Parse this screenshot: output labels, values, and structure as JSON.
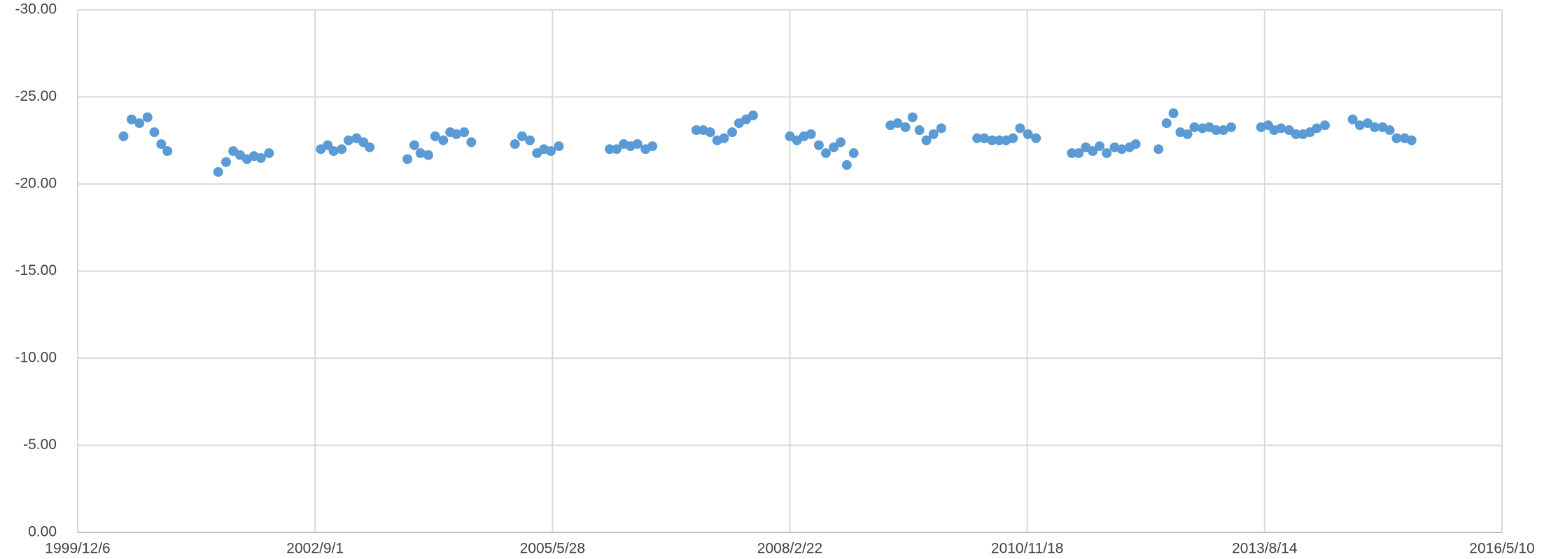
{
  "chart_data": {
    "type": "scatter",
    "color": "#5b9bd5",
    "grid": true,
    "xlim": [
      36500,
      42500
    ],
    "xticks": [
      {
        "value": 36500,
        "label": "1999/12/6"
      },
      {
        "value": 37500,
        "label": "2002/9/1"
      },
      {
        "value": 38500,
        "label": "2005/5/28"
      },
      {
        "value": 39500,
        "label": "2008/2/22"
      },
      {
        "value": 40500,
        "label": "2010/11/18"
      },
      {
        "value": 41500,
        "label": "2013/8/14"
      },
      {
        "value": 42500,
        "label": "2016/5/10"
      }
    ],
    "ylim": [
      0,
      -30
    ],
    "yticks": [
      {
        "value": -30,
        "label": "-30.00"
      },
      {
        "value": -25,
        "label": "-25.00"
      },
      {
        "value": -20,
        "label": "-20.00"
      },
      {
        "value": -15,
        "label": "-15.00"
      },
      {
        "value": -10,
        "label": "-10.00"
      },
      {
        "value": -5,
        "label": "-5.00"
      },
      {
        "value": 0,
        "label": "0.00"
      }
    ],
    "x": [
      36693,
      36727,
      36760,
      36794,
      36823,
      36852,
      36878,
      37092,
      37125,
      37155,
      37184,
      37213,
      37243,
      37272,
      37306,
      37524,
      37553,
      37578,
      37612,
      37641,
      37675,
      37704,
      37730,
      37889,
      37918,
      37944,
      37977,
      38006,
      38040,
      38069,
      38095,
      38128,
      38158,
      38342,
      38372,
      38405,
      38435,
      38464,
      38493,
      38527,
      38741,
      38770,
      38800,
      38829,
      38858,
      38892,
      38921,
      39106,
      39135,
      39165,
      39194,
      39223,
      39257,
      39286,
      39316,
      39345,
      39500,
      39530,
      39559,
      39589,
      39622,
      39652,
      39685,
      39714,
      39740,
      39769,
      39924,
      39954,
      39987,
      40017,
      40046,
      40075,
      40105,
      40138,
      40289,
      40319,
      40352,
      40382,
      40411,
      40440,
      40470,
      40503,
      40537,
      40688,
      40717,
      40747,
      40776,
      40805,
      40835,
      40868,
      40898,
      40931,
      40957,
      41053,
      41087,
      41116,
      41145,
      41175,
      41204,
      41238,
      41267,
      41296,
      41326,
      41359,
      41485,
      41515,
      41540,
      41569,
      41603,
      41632,
      41662,
      41691,
      41720,
      41754,
      41871,
      41901,
      41934,
      41964,
      41997,
      42027,
      42056,
      42090,
      42119
    ],
    "values": [
      -22.74,
      -23.71,
      -23.49,
      -23.83,
      -22.97,
      -22.29,
      -21.89,
      -20.69,
      -21.26,
      -21.89,
      -21.66,
      -21.43,
      -21.6,
      -21.49,
      -21.77,
      -22.0,
      -22.23,
      -21.89,
      -22.0,
      -22.51,
      -22.63,
      -22.4,
      -22.11,
      -21.43,
      -22.23,
      -21.77,
      -21.66,
      -22.74,
      -22.51,
      -22.97,
      -22.86,
      -22.97,
      -22.4,
      -22.29,
      -22.74,
      -22.51,
      -21.77,
      -22.0,
      -21.89,
      -22.17,
      -22.0,
      -22.0,
      -22.29,
      -22.17,
      -22.29,
      -22.0,
      -22.17,
      -23.09,
      -23.09,
      -22.97,
      -22.51,
      -22.63,
      -22.97,
      -23.49,
      -23.71,
      -23.94,
      -22.74,
      -22.51,
      -22.74,
      -22.86,
      -22.23,
      -21.77,
      -22.11,
      -22.4,
      -21.09,
      -21.77,
      -23.37,
      -23.49,
      -23.26,
      -23.83,
      -23.09,
      -22.51,
      -22.86,
      -23.2,
      -22.63,
      -22.63,
      -22.51,
      -22.51,
      -22.51,
      -22.63,
      -23.2,
      -22.86,
      -22.63,
      -21.77,
      -21.77,
      -22.11,
      -21.89,
      -22.17,
      -21.77,
      -22.11,
      -22.0,
      -22.11,
      -22.29,
      -22.0,
      -23.49,
      -24.06,
      -22.97,
      -22.86,
      -23.26,
      -23.2,
      -23.26,
      -23.09,
      -23.09,
      -23.26,
      -23.26,
      -23.37,
      -23.09,
      -23.2,
      -23.09,
      -22.86,
      -22.86,
      -22.97,
      -23.2,
      -23.37,
      -23.71,
      -23.37,
      -23.49,
      -23.26,
      -23.26,
      -23.09,
      -22.63,
      -22.63,
      -22.51
    ]
  }
}
